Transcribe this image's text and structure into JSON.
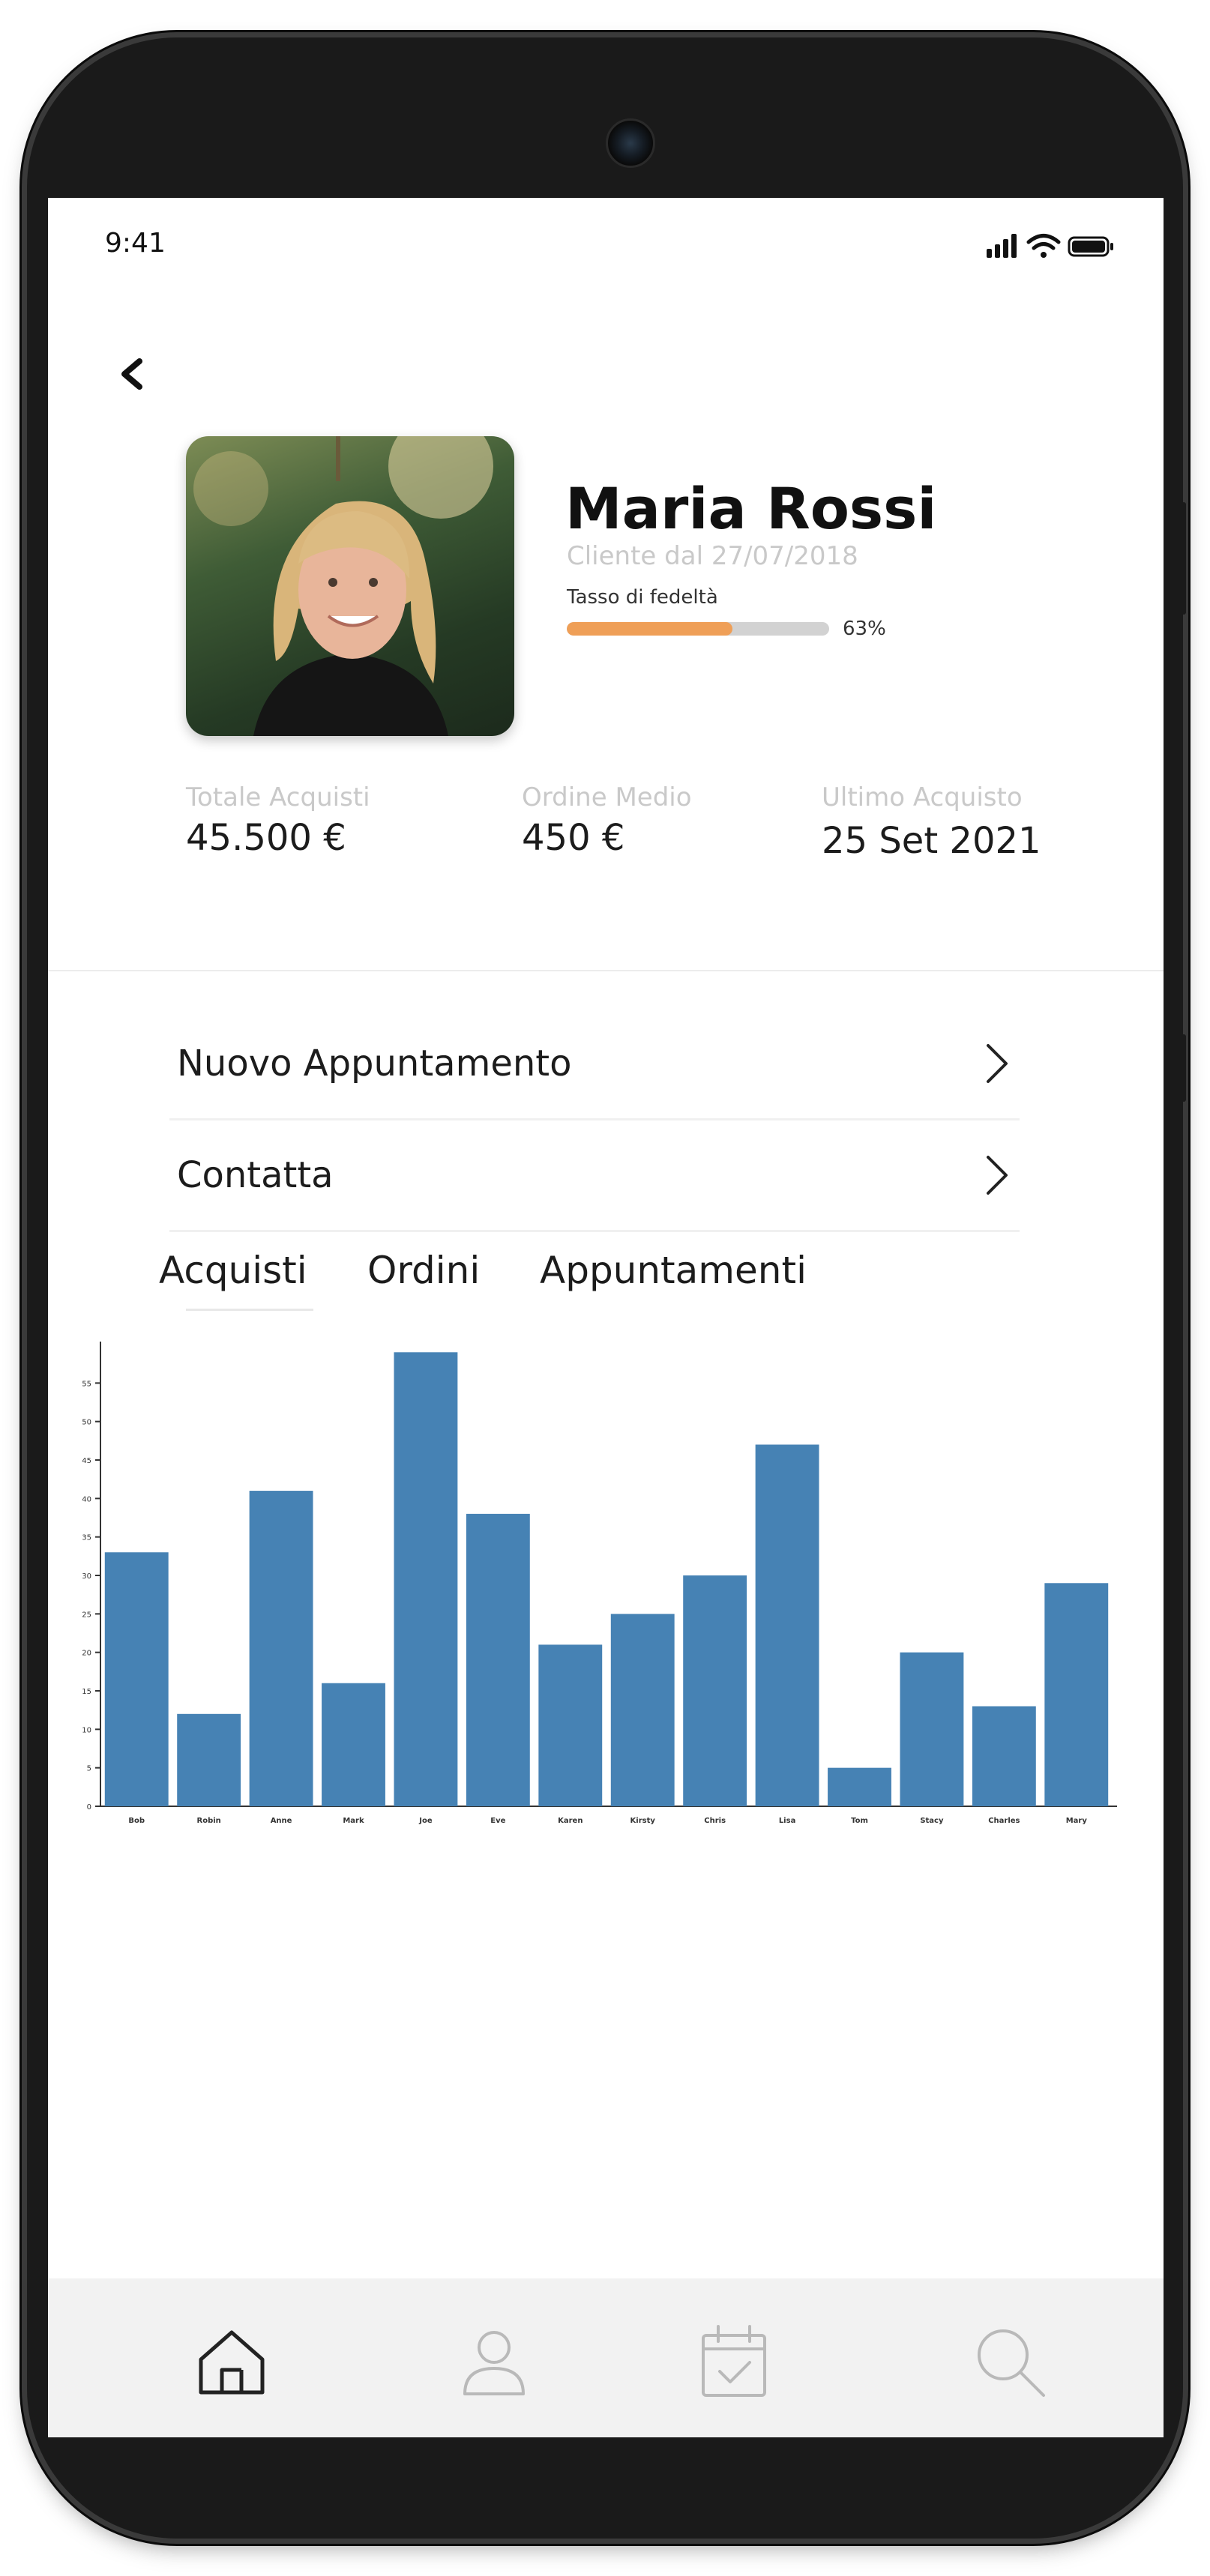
{
  "status_bar": {
    "time": "9:41"
  },
  "profile": {
    "name": "Maria Rossi",
    "customer_since": "Cliente dal 27/07/2018",
    "loyalty_label": "Tasso di fedeltà",
    "loyalty_percent": 63,
    "loyalty_text": "63%"
  },
  "stats": [
    {
      "label": "Totale Acquisti",
      "value": "45.500 €"
    },
    {
      "label": "Ordine Medio",
      "value": "450 €"
    },
    {
      "label": "Ultimo Acquisto",
      "value": "25 Set 2021"
    }
  ],
  "menu": [
    {
      "label": "Nuovo Appuntamento"
    },
    {
      "label": "Contatta"
    }
  ],
  "tabs": [
    {
      "label": "Acquisti",
      "active": true
    },
    {
      "label": "Ordini",
      "active": false
    },
    {
      "label": "Appuntamenti",
      "active": false
    }
  ],
  "chart_data": {
    "type": "bar",
    "categories": [
      "Bob",
      "Robin",
      "Anne",
      "Mark",
      "Joe",
      "Eve",
      "Karen",
      "Kirsty",
      "Chris",
      "Lisa",
      "Tom",
      "Stacy",
      "Charles",
      "Mary"
    ],
    "values": [
      33,
      12,
      41,
      16,
      59,
      38,
      21,
      25,
      30,
      47,
      5,
      20,
      13,
      29
    ],
    "yticks": [
      0,
      5,
      10,
      15,
      20,
      25,
      30,
      35,
      40,
      45,
      50,
      55
    ],
    "ylim": [
      0,
      60
    ],
    "title": "",
    "xlabel": "",
    "ylabel": "",
    "color": "#4682b4"
  },
  "nav": [
    "home-icon",
    "user-icon",
    "calendar-check-icon",
    "search-icon"
  ],
  "colors": {
    "accent": "#ef9f57",
    "bar": "#4682b4",
    "nav_bg": "#f2f2f2"
  }
}
